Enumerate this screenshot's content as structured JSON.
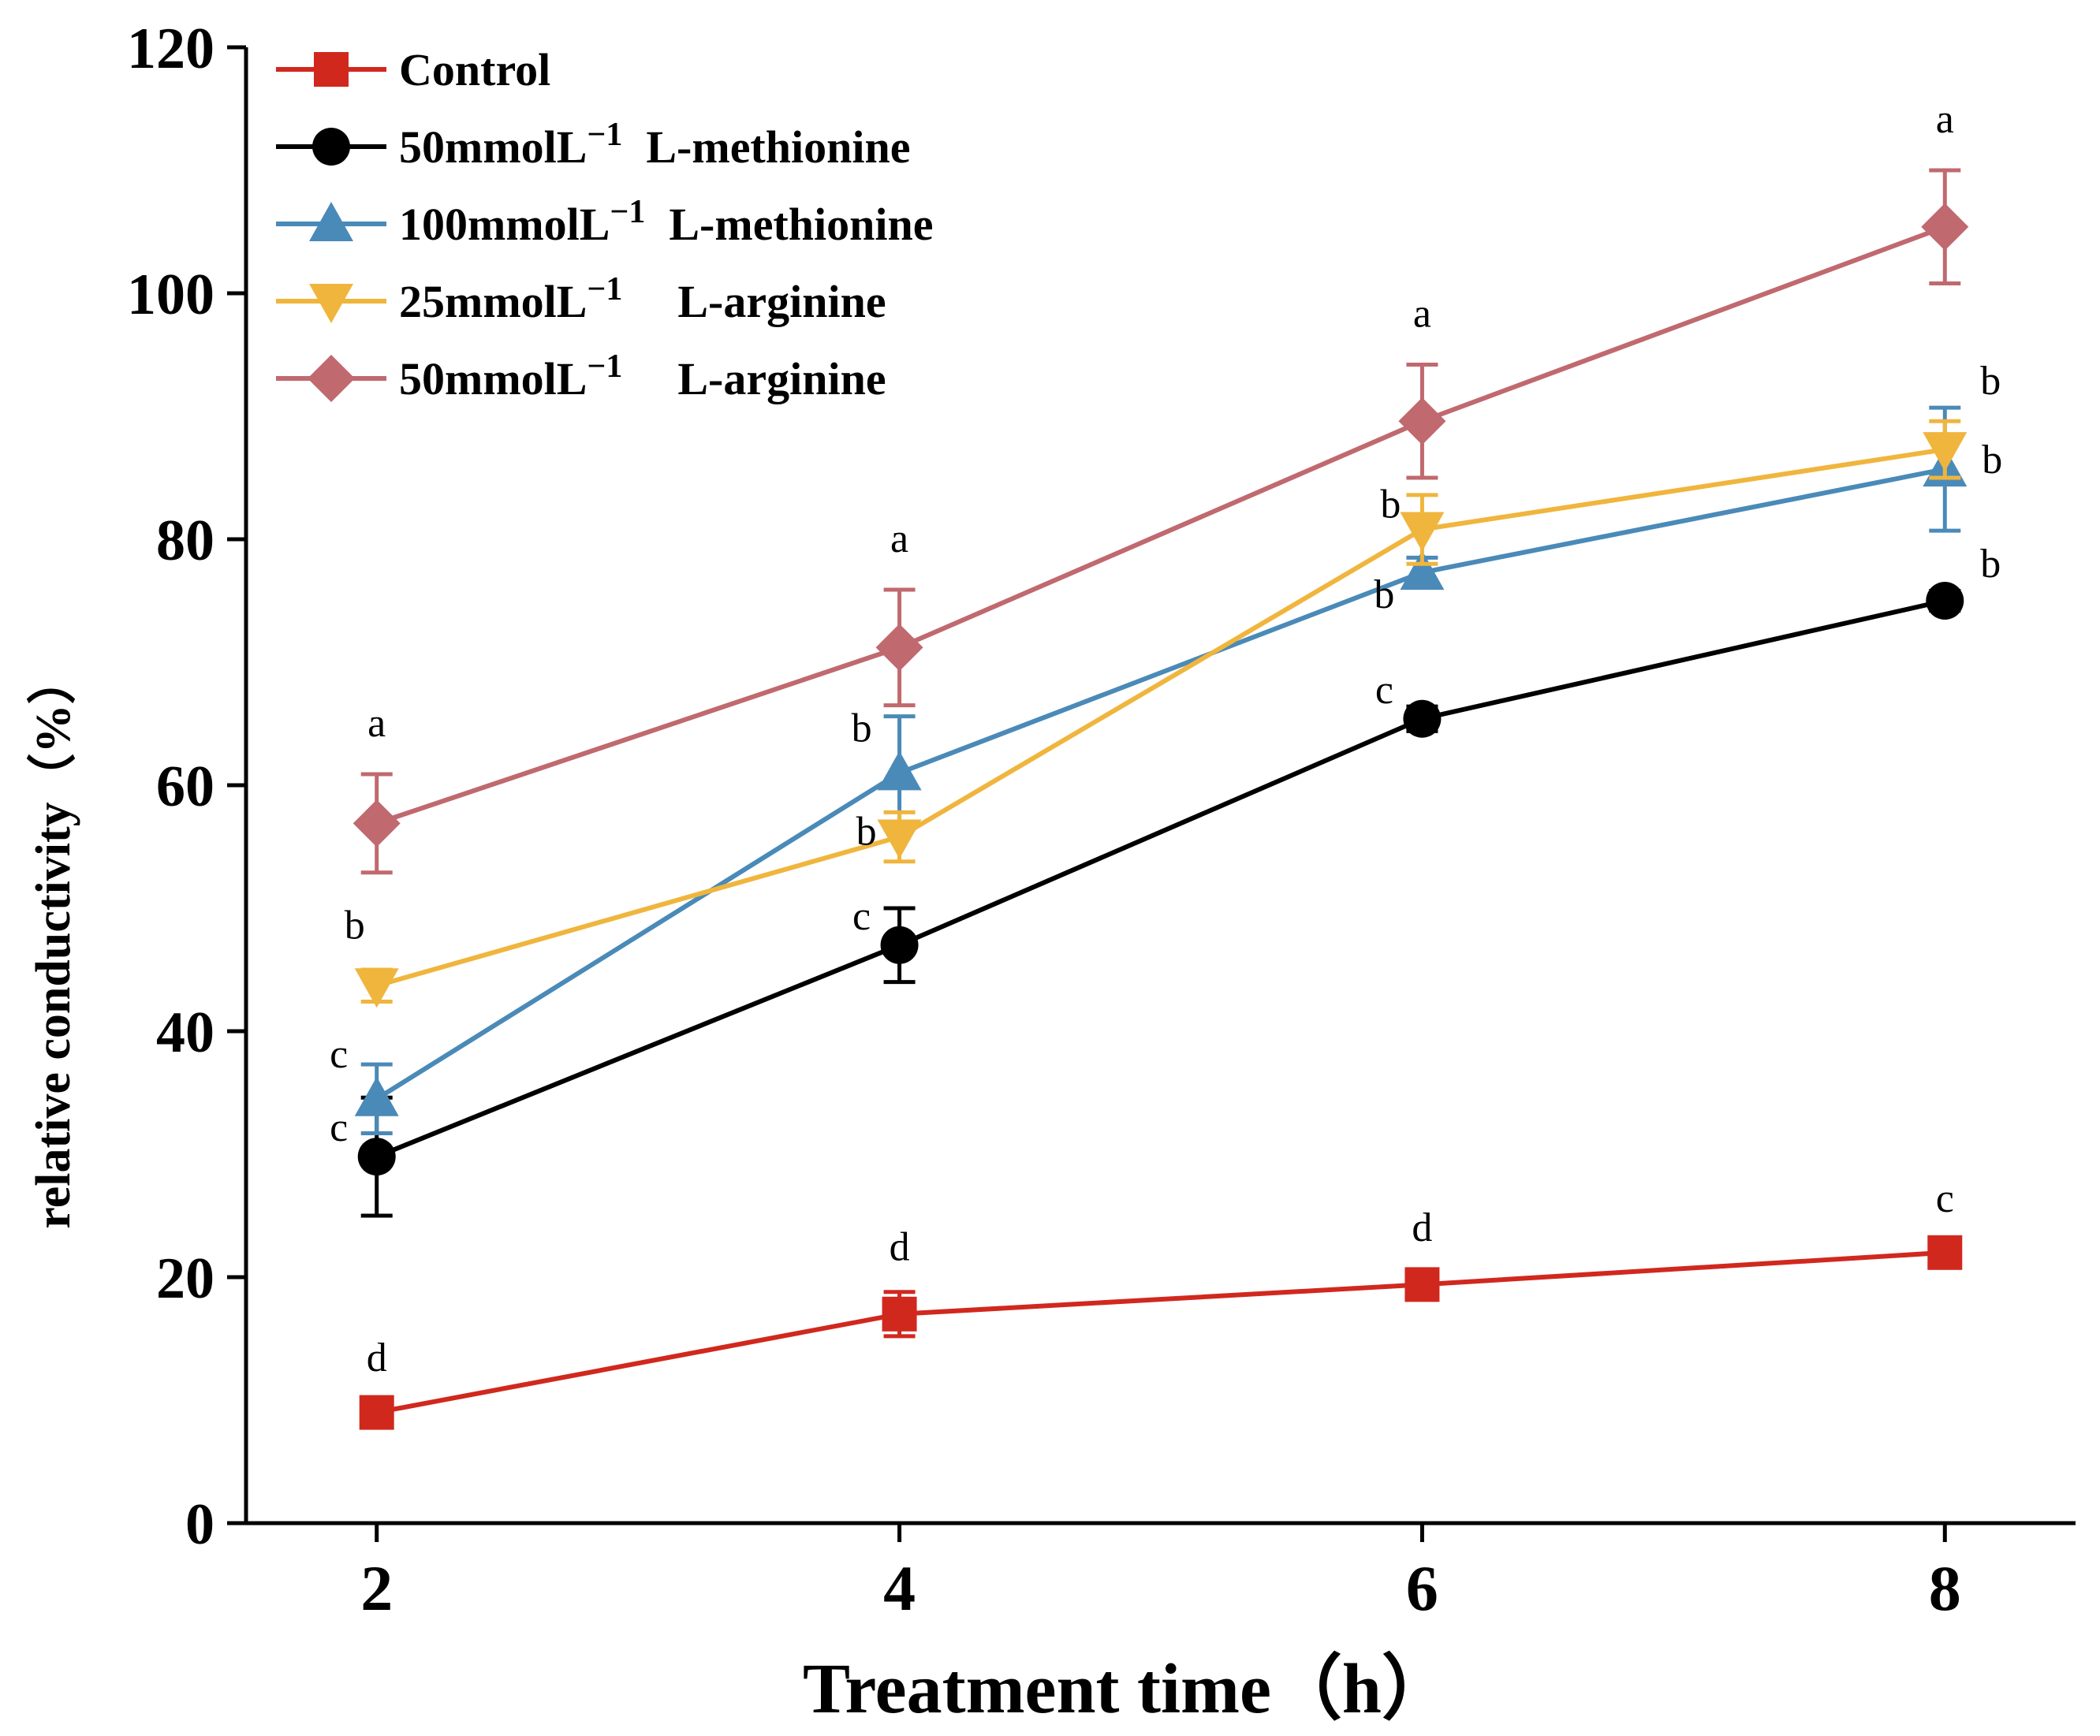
{
  "chart_data": {
    "type": "line",
    "title": "",
    "xlabel": "Treatment time（h）",
    "ylabel": "relative conductivity（%）",
    "x": [
      2,
      4,
      6,
      8
    ],
    "x_ticks": [
      2,
      4,
      6,
      8
    ],
    "xlim": [
      1.5,
      8.5
    ],
    "ylim": [
      0,
      120
    ],
    "y_ticks": [
      0,
      20,
      40,
      60,
      80,
      100,
      120
    ],
    "grid": false,
    "legend_position": "top-left",
    "series": [
      {
        "name": "Control",
        "legend_prefix": "Control",
        "legend_unit": "",
        "legend_compound": "",
        "color": "#d1281e",
        "marker": "square",
        "values": [
          9,
          17,
          19.4,
          22
        ],
        "errors": [
          0.8,
          1.8,
          1.0,
          1.0
        ],
        "labels": [
          "d",
          "d",
          "d",
          "c"
        ]
      },
      {
        "name": "50mmolL−1 L-methionine",
        "legend_prefix": "50mmolL",
        "legend_unit": "−1",
        "legend_compound": "L-methionine",
        "color": "#000000",
        "marker": "circle",
        "values": [
          29.8,
          47,
          65.4,
          75
        ],
        "errors": [
          4.8,
          3.0,
          1.0,
          0.8
        ],
        "labels": [
          "c",
          "c",
          "c",
          "b"
        ]
      },
      {
        "name": "100mmolL−1 L-methionine",
        "legend_prefix": "100mmolL",
        "legend_unit": "−1",
        "legend_compound": "L-methionine",
        "color": "#4a8ab8",
        "marker": "triangle-up",
        "values": [
          34.5,
          61,
          77.3,
          85.7
        ],
        "errors": [
          2.8,
          4.6,
          1.2,
          5.0
        ],
        "labels": [
          "c",
          "b",
          "b",
          "b"
        ]
      },
      {
        "name": "25mmolL−1 L-arginine",
        "legend_prefix": "25mmolL",
        "legend_unit": "−1",
        "legend_compound": "L-arginine",
        "color": "#f0b53d",
        "marker": "triangle-down",
        "values": [
          43.7,
          55.8,
          80.8,
          87.3
        ],
        "errors": [
          1.3,
          2.0,
          2.8,
          2.3
        ],
        "labels": [
          "b",
          "b",
          "b",
          "b"
        ]
      },
      {
        "name": "50mmolL−1 L-arginine",
        "legend_prefix": "50mmolL",
        "legend_unit": "−1",
        "legend_compound": "L-arginine",
        "color": "#c0696f",
        "marker": "diamond",
        "values": [
          56.9,
          71.2,
          89.6,
          105.4
        ],
        "errors": [
          4.0,
          4.7,
          4.6,
          4.6
        ],
        "labels": [
          "a",
          "a",
          "a",
          "a"
        ]
      }
    ]
  }
}
